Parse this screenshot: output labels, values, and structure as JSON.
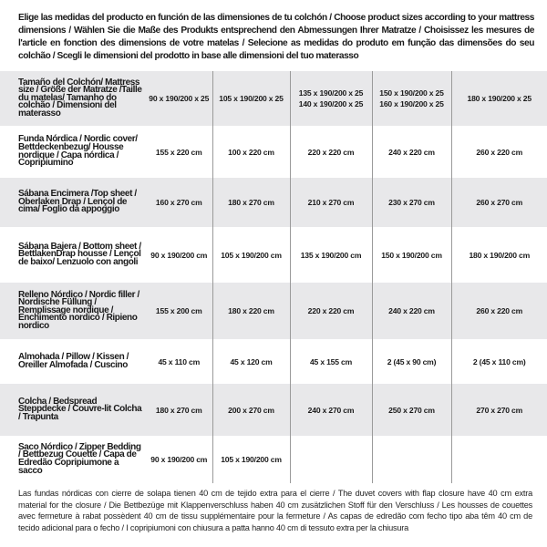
{
  "intro": "Elige las medidas del producto en función de las dimensiones de tu colchón / Choose product sizes according to your mattress dimensions / Wählen Sie die Maße des Produkts entsprechend den Abmessungen Ihrer Matratze / Choisissez les mesures de l'article en fonction des dimensions de votre matelas / Selecione as medidas do produto em função das dimensões do seu colchão / Scegli le dimensioni del prodotto in base alle dimensioni del tuo materasso",
  "colors": {
    "row_grey": "#e8e8ea",
    "divider": "#9a9a9a",
    "text": "#1a1a1a"
  },
  "table": {
    "rows": [
      {
        "label": "Tamaño del Colchón/ Mattress size / Größe der Matratze /Taille du matelas/ Tamanho do colchão / Dimensioni del materasso",
        "cells": [
          [
            "90 x 190/200 x 25"
          ],
          [
            "105 x 190/200 x 25"
          ],
          [
            "135 x 190/200 x 25",
            "140 x 190/200 x 25"
          ],
          [
            "150 x 190/200 x 25",
            "160 x 190/200 x 25"
          ],
          [
            "180 x 190/200 x 25"
          ]
        ]
      },
      {
        "label": "Funda Nórdica /  Nordic cover/ Bettdeckenbezug/ Housse nordique  / Capa nórdica / Copripiumino",
        "cells": [
          [
            "155 x 220 cm"
          ],
          [
            "100 x 220 cm"
          ],
          [
            "220 x 220 cm"
          ],
          [
            "240 x 220 cm"
          ],
          [
            "260 x 220 cm"
          ]
        ]
      },
      {
        "label": "Sábana Encimera /Top sheet / Oberlaken Drap / Lençol de cima/ Foglio da appoggio",
        "cells": [
          [
            "160 x 270 cm"
          ],
          [
            "180 x 270 cm"
          ],
          [
            "210 x 270 cm"
          ],
          [
            "230 x 270 cm"
          ],
          [
            "260 x 270 cm"
          ]
        ]
      },
      {
        "label": "Sábana Bajera / Bottom sheet / BettlakenDrap housse / Lençol de baixo/ Lenzuolo con angoli",
        "cells": [
          [
            "90 x 190/200 cm"
          ],
          [
            "105 x 190/200 cm"
          ],
          [
            "135 x 190/200 cm"
          ],
          [
            "150 x 190/200 cm"
          ],
          [
            "180 x 190/200 cm"
          ]
        ]
      },
      {
        "label": "Relleno Nórdico / Nordic filler / Nordische Füllung / Remplissage nordique / Enchimento nordico / Ripieno nordico",
        "cells": [
          [
            "155 x 200 cm"
          ],
          [
            "180 x 220 cm"
          ],
          [
            "220 x 220 cm"
          ],
          [
            "240 x 220 cm"
          ],
          [
            "260 x 220 cm"
          ]
        ]
      },
      {
        "label": "Almohada  / Pillow / Kissen / Oreiller Almofada / Cuscino",
        "cells": [
          [
            "45 x 110 cm"
          ],
          [
            "45 x 120 cm"
          ],
          [
            "45 x 155 cm"
          ],
          [
            "2 (45 x 90 cm)"
          ],
          [
            "2 (45 x 110 cm)"
          ]
        ]
      },
      {
        "label": "Colcha / Bedspread Steppdecke / Couvre-lit Colcha / Trapunta",
        "cells": [
          [
            "180 x 270 cm"
          ],
          [
            "200 x 270 cm"
          ],
          [
            "240 x 270 cm"
          ],
          [
            "250 x 270 cm"
          ],
          [
            "270 x 270 cm"
          ]
        ]
      },
      {
        "label": "Saco Nórdico / Zipper Bedding / Bettbezug Couette  / Capa de Edredão Copripiumone a sacco",
        "cells": [
          [
            "90 x 190/200 cm"
          ],
          [
            "105 x 190/200 cm"
          ],
          [],
          [],
          []
        ]
      }
    ]
  },
  "footer": "Las fundas nórdicas con cierre de solapa tienen 40 cm de tejido extra para el cierre  / The duvet covers with flap closure have 40 cm extra material for the closure / Die Bettbezüge mit Klappenverschluss haben 40 cm zusätzlichen Stoff für den Verschluss / Les housses de couettes avec fermeture à rabat possèdent 40 cm de tissu supplémentaire pour la fermeture / As capas de edredão com fecho tipo aba têm 40 cm de tecido adicional para o fecho / I copripiumoni con chiusura a patta hanno 40 cm di tessuto extra per la chiusura"
}
